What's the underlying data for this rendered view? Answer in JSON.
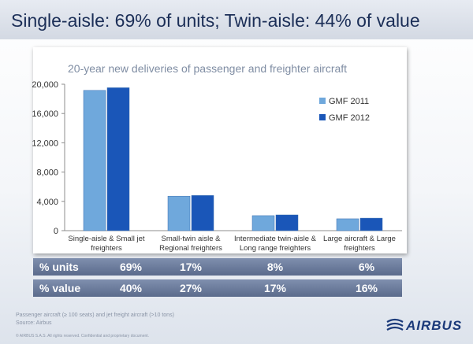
{
  "slide": {
    "title": "Single-aisle: 69% of units; Twin-aisle: 44% of value",
    "footnote_line1": "Passenger aircraft (≥ 100 seats) and jet freight aircraft (>10 tons)",
    "footnote_line2": "Source: Airbus",
    "copyright": "© AIRBUS S.A.S. All rights reserved. Confidential and proprietary document.",
    "logo_text": "AIRBUS"
  },
  "chart_data": {
    "type": "bar",
    "title": "20-year new deliveries of passenger and freighter aircraft",
    "categories": [
      "Single-aisle & Small jet freighters",
      "Small-twin aisle & Regional freighters",
      "Intermediate twin-aisle & Long range freighters",
      "Large aircraft & Large freighters"
    ],
    "category_lines": [
      [
        "Single-aisle & Small jet",
        "freighters"
      ],
      [
        "Small-twin aisle &",
        "Regional freighters"
      ],
      [
        "Intermediate twin-aisle &",
        "Long range freighters"
      ],
      [
        "Large aircraft & Large",
        "freighters"
      ]
    ],
    "series": [
      {
        "name": "GMF 2011",
        "values": [
          19160,
          4710,
          2050,
          1620
        ],
        "color": "#6fa8dc"
      },
      {
        "name": "GMF 2012",
        "values": [
          19520,
          4800,
          2150,
          1710
        ],
        "color": "#1a56b8"
      }
    ],
    "ylim": [
      0,
      20000
    ],
    "yticks": [
      0,
      4000,
      8000,
      12000,
      16000,
      20000
    ],
    "ytick_labels": [
      "0",
      "4,000",
      "8,000",
      "12,000",
      "16,000",
      "20,000"
    ],
    "grid": false,
    "legend_position": "top-right"
  },
  "table": {
    "rows": [
      {
        "label": "% units",
        "values": [
          "69%",
          "17%",
          "8%",
          "6%"
        ]
      },
      {
        "label": "% value",
        "values": [
          "40%",
          "27%",
          "17%",
          "16%"
        ]
      }
    ]
  }
}
